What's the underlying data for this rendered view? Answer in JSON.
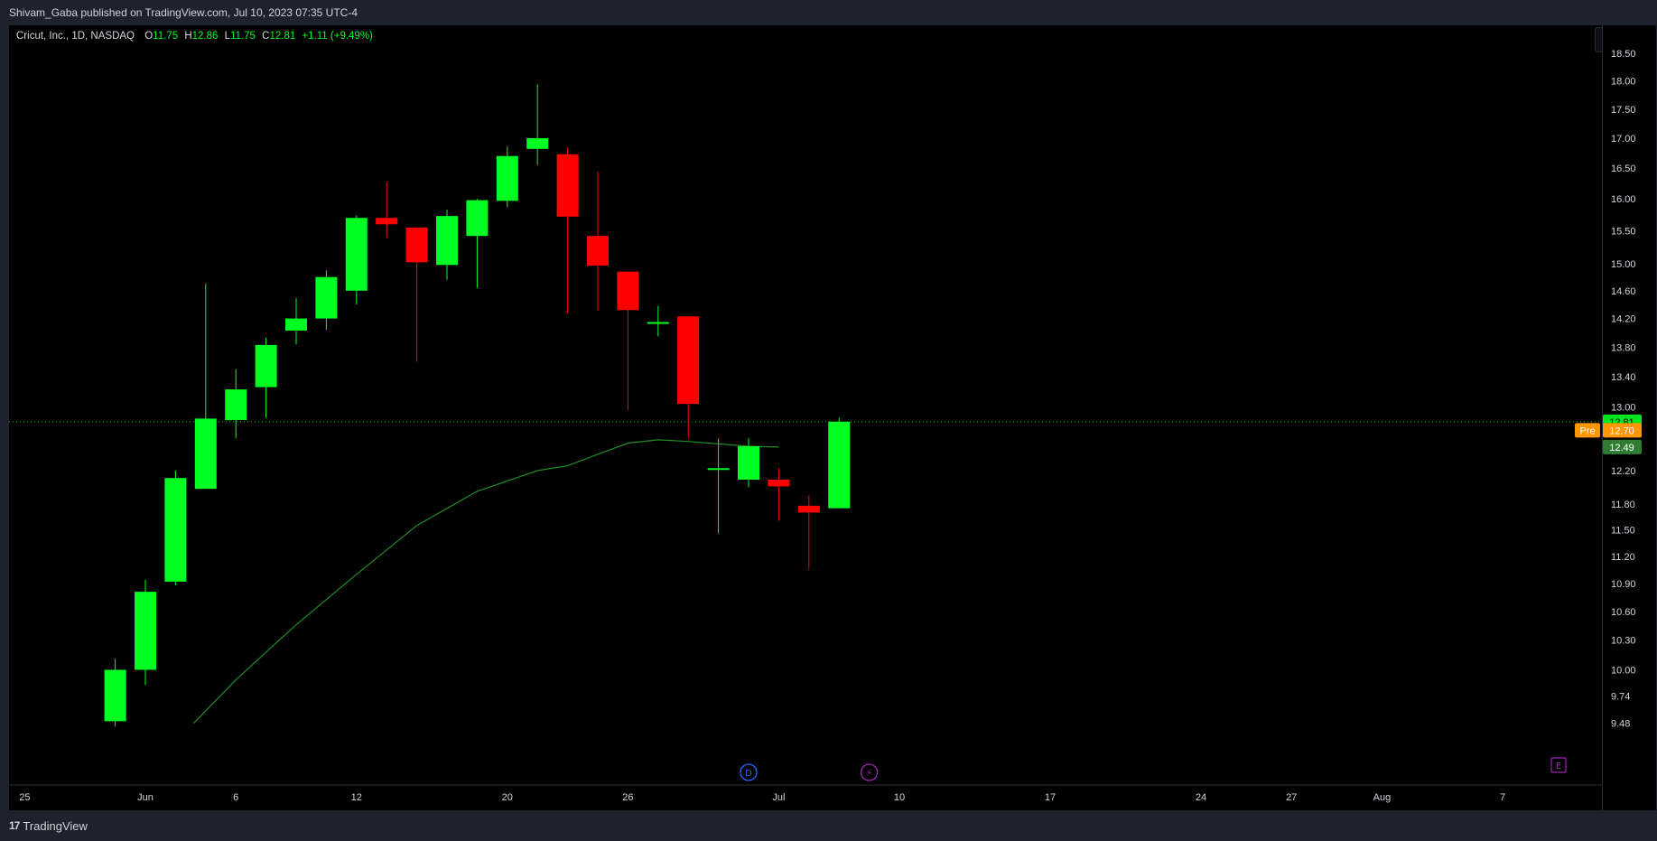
{
  "header": {
    "publish_line": "Shivam_Gaba published on TradingView.com, Jul 10, 2023 07:35 UTC-4"
  },
  "legend": {
    "symbol": "Cricut, Inc., 1D, NASDAQ",
    "open_label": "O",
    "open": "11.75",
    "high_label": "H",
    "high": "12.86",
    "low_label": "L",
    "low": "11.75",
    "close_label": "C",
    "close": "12.81",
    "change": "+1.11 (+9.49%)"
  },
  "footer": {
    "brand": "TradingView",
    "logo_mark": "17"
  },
  "colors": {
    "up": "#00ff22",
    "down": "#ff0000",
    "ma": "#1e8c23",
    "background": "#000000",
    "frame": "#1e222d",
    "pre_badge": "#ff9800",
    "close_badge": "#00e620",
    "ma_badge": "#2e7d32"
  },
  "price_badges": [
    {
      "label": "",
      "value": "12.81",
      "price": 12.81,
      "color": "#00e620"
    },
    {
      "label": "Pre",
      "value": "12.70",
      "price": 12.7,
      "color": "#ff9800"
    },
    {
      "label": "",
      "value": "12.49",
      "price": 12.49,
      "color": "#2e7d32"
    }
  ],
  "event_markers": [
    {
      "icon": "dividend-icon",
      "glyph": "D",
      "date_index": 20,
      "color": "#2962ff"
    },
    {
      "icon": "split-icon",
      "glyph": "⚡",
      "date_index": 24,
      "color": "#9c27b0"
    },
    {
      "icon": "earnings-icon",
      "glyph": "E",
      "date_index": 47,
      "color": "#9c27b0"
    }
  ],
  "chart_data": {
    "type": "candlestick",
    "title": "Cricut, Inc., 1D, NASDAQ",
    "y_ticks": [
      "9.48",
      "9.74",
      "10.00",
      "10.30",
      "10.60",
      "10.90",
      "11.20",
      "11.50",
      "11.80",
      "12.20",
      "13.00",
      "13.40",
      "13.80",
      "14.20",
      "14.60",
      "15.00",
      "15.50",
      "16.00",
      "16.50",
      "17.00",
      "17.50",
      "18.00",
      "18.50"
    ],
    "y_scale": "log",
    "ylim": [
      9.48,
      18.8
    ],
    "x_ticks": [
      {
        "label": "25",
        "index": -4
      },
      {
        "label": "Jun",
        "index": 0
      },
      {
        "label": "6",
        "index": 3
      },
      {
        "label": "12",
        "index": 7
      },
      {
        "label": "20",
        "index": 12
      },
      {
        "label": "26",
        "index": 16
      },
      {
        "label": "Jul",
        "index": 21
      },
      {
        "label": "10",
        "index": 25
      },
      {
        "label": "17",
        "index": 30
      },
      {
        "label": "24",
        "index": 35
      },
      {
        "label": "27",
        "index": 38
      },
      {
        "label": "Aug",
        "index": 41
      },
      {
        "label": "7",
        "index": 45
      }
    ],
    "candles": [
      {
        "date": "May 30",
        "index": -1,
        "o": 9.5,
        "h": 10.11,
        "l": 9.45,
        "c": 10.0
      },
      {
        "date": "Jun 1",
        "index": 0,
        "o": 10.0,
        "h": 10.94,
        "l": 9.85,
        "c": 10.81
      },
      {
        "date": "Jun 2",
        "index": 1,
        "o": 10.92,
        "h": 12.2,
        "l": 10.88,
        "c": 12.11
      },
      {
        "date": "Jun 5",
        "index": 2,
        "o": 11.98,
        "h": 14.7,
        "l": 11.98,
        "c": 12.85
      },
      {
        "date": "Jun 6",
        "index": 3,
        "o": 12.83,
        "h": 13.5,
        "l": 12.6,
        "c": 13.23
      },
      {
        "date": "Jun 7",
        "index": 4,
        "o": 13.26,
        "h": 13.93,
        "l": 12.86,
        "c": 13.83
      },
      {
        "date": "Jun 8",
        "index": 5,
        "o": 14.03,
        "h": 14.49,
        "l": 13.84,
        "c": 14.2
      },
      {
        "date": "Jun 9",
        "index": 6,
        "o": 14.2,
        "h": 14.9,
        "l": 14.04,
        "c": 14.8
      },
      {
        "date": "Jun 12",
        "index": 7,
        "o": 14.6,
        "h": 15.74,
        "l": 14.4,
        "c": 15.7
      },
      {
        "date": "Jun 13",
        "index": 8,
        "o": 15.7,
        "h": 16.27,
        "l": 15.39,
        "c": 15.6
      },
      {
        "date": "Jun 14",
        "index": 9,
        "o": 15.55,
        "h": 15.55,
        "l": 13.6,
        "c": 15.02
      },
      {
        "date": "Jun 15",
        "index": 10,
        "o": 14.98,
        "h": 15.83,
        "l": 14.76,
        "c": 15.73
      },
      {
        "date": "Jun 16",
        "index": 11,
        "o": 15.42,
        "h": 16.0,
        "l": 14.64,
        "c": 15.98
      },
      {
        "date": "Jun 20",
        "index": 12,
        "o": 15.97,
        "h": 16.86,
        "l": 15.87,
        "c": 16.7
      },
      {
        "date": "Jun 21",
        "index": 13,
        "o": 16.82,
        "h": 17.94,
        "l": 16.55,
        "c": 17.0
      },
      {
        "date": "Jun 22",
        "index": 14,
        "o": 16.73,
        "h": 16.85,
        "l": 14.28,
        "c": 15.72
      },
      {
        "date": "Jun 23",
        "index": 15,
        "o": 15.42,
        "h": 16.44,
        "l": 14.31,
        "c": 14.97
      },
      {
        "date": "Jun 26",
        "index": 16,
        "o": 14.88,
        "h": 14.88,
        "l": 12.96,
        "c": 14.32
      },
      {
        "date": "Jun 27",
        "index": 17,
        "o": 14.15,
        "h": 14.38,
        "l": 13.95,
        "c": 14.15
      },
      {
        "date": "Jun 28",
        "index": 18,
        "o": 14.23,
        "h": 14.23,
        "l": 12.6,
        "c": 13.04
      },
      {
        "date": "Jun 29",
        "index": 19,
        "o": 12.23,
        "h": 12.6,
        "l": 11.46,
        "c": 12.23
      },
      {
        "date": "Jun 30",
        "index": 20,
        "o": 12.09,
        "h": 12.6,
        "l": 12.0,
        "c": 12.5
      },
      {
        "date": "Jul 3",
        "index": 21,
        "o": 12.09,
        "h": 12.23,
        "l": 11.6,
        "c": 12.01
      },
      {
        "date": "Jul 5",
        "index": 22,
        "o": 11.78,
        "h": 11.9,
        "l": 11.05,
        "c": 11.7
      },
      {
        "date": "Jul 6",
        "index": 23,
        "o": 11.75,
        "h": 12.86,
        "l": 11.75,
        "c": 12.81
      }
    ],
    "ma": {
      "name": "",
      "points": [
        {
          "index": 1.6,
          "v": 9.48
        },
        {
          "index": 3,
          "v": 9.9
        },
        {
          "index": 5,
          "v": 10.46
        },
        {
          "index": 7,
          "v": 11.0
        },
        {
          "index": 9,
          "v": 11.55
        },
        {
          "index": 11,
          "v": 11.95
        },
        {
          "index": 13,
          "v": 12.2
        },
        {
          "index": 14,
          "v": 12.26
        },
        {
          "index": 15,
          "v": 12.4
        },
        {
          "index": 16,
          "v": 12.54
        },
        {
          "index": 17,
          "v": 12.58
        },
        {
          "index": 18,
          "v": 12.56
        },
        {
          "index": 19,
          "v": 12.53
        },
        {
          "index": 20,
          "v": 12.5
        },
        {
          "index": 21,
          "v": 12.49
        }
      ]
    },
    "current_price": 12.81,
    "grid": false
  }
}
